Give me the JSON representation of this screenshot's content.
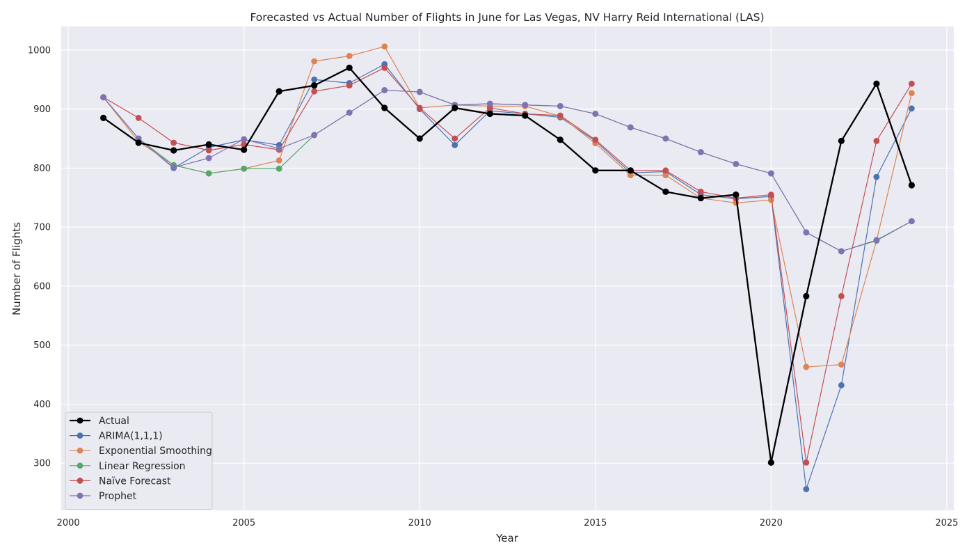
{
  "chart_data": {
    "type": "line",
    "title": "Forecasted vs Actual Number of Flights in June for Las Vegas, NV Harry Reid International (LAS)",
    "xlabel": "Year",
    "ylabel": "Number of Flights",
    "xlim": [
      1999.8,
      2025.2
    ],
    "ylim": [
      220,
      1040
    ],
    "x_ticks": [
      2000,
      2005,
      2010,
      2015,
      2020,
      2025
    ],
    "y_ticks": [
      300,
      400,
      500,
      600,
      700,
      800,
      900,
      1000
    ],
    "grid": true,
    "legend_position": "lower-left",
    "background_color": "#eaeaf2",
    "series": [
      {
        "name": "Actual",
        "color": "#000000",
        "emphasis": true,
        "points": [
          [
            2001,
            885
          ],
          [
            2002,
            843
          ],
          [
            2003,
            830
          ],
          [
            2004,
            840
          ],
          [
            2005,
            831
          ],
          [
            2006,
            930
          ],
          [
            2007,
            940
          ],
          [
            2008,
            970
          ],
          [
            2009,
            902
          ],
          [
            2010,
            850
          ],
          [
            2011,
            902
          ],
          [
            2012,
            892
          ],
          [
            2013,
            889
          ],
          [
            2014,
            848
          ],
          [
            2015,
            796
          ],
          [
            2016,
            796
          ],
          [
            2017,
            760
          ],
          [
            2018,
            749
          ],
          [
            2019,
            755
          ],
          [
            2020,
            301
          ],
          [
            2021,
            583
          ],
          [
            2022,
            846
          ],
          [
            2023,
            943
          ],
          [
            2024,
            771
          ]
        ]
      },
      {
        "name": "ARIMA(1,1,1)",
        "color": "#4c72b0",
        "points": [
          [
            2001,
            920
          ],
          [
            2002,
            850
          ],
          [
            2003,
            800
          ],
          [
            2004,
            835
          ],
          [
            2005,
            848
          ],
          [
            2006,
            839
          ],
          [
            2007,
            950
          ],
          [
            2008,
            944
          ],
          [
            2009,
            976
          ],
          [
            2010,
            900
          ],
          [
            2011,
            839
          ],
          [
            2012,
            897
          ],
          [
            2013,
            892
          ],
          [
            2014,
            886
          ],
          [
            2015,
            846
          ],
          [
            2016,
            792
          ],
          [
            2017,
            794
          ],
          [
            2018,
            755
          ],
          [
            2019,
            748
          ],
          [
            2020,
            752
          ],
          [
            2021,
            256
          ],
          [
            2022,
            432
          ],
          [
            2023,
            785
          ],
          [
            2024,
            901
          ]
        ]
      },
      {
        "name": "Exponential Smoothing",
        "color": "#dd8452",
        "points": [
          [
            2001,
            920
          ],
          [
            2002,
            845
          ],
          [
            2003,
            805
          ],
          [
            2004,
            791
          ],
          [
            2005,
            799
          ],
          [
            2006,
            813
          ],
          [
            2007,
            981
          ],
          [
            2008,
            990
          ],
          [
            2009,
            1006
          ],
          [
            2010,
            902
          ],
          [
            2011,
            907
          ],
          [
            2012,
            905
          ],
          [
            2013,
            905
          ],
          [
            2014,
            888
          ],
          [
            2015,
            842
          ],
          [
            2016,
            788
          ],
          [
            2017,
            788
          ],
          [
            2018,
            749
          ],
          [
            2019,
            741
          ],
          [
            2020,
            746
          ],
          [
            2021,
            463
          ],
          [
            2022,
            467
          ],
          [
            2023,
            677
          ],
          [
            2024,
            927
          ]
        ]
      },
      {
        "name": "Linear Regression",
        "color": "#55a868",
        "points": [
          [
            2001,
            920
          ],
          [
            2002,
            850
          ],
          [
            2003,
            805
          ],
          [
            2004,
            791
          ],
          [
            2005,
            799
          ],
          [
            2006,
            799
          ],
          [
            2007,
            856
          ],
          [
            2008,
            894
          ],
          [
            2009,
            932
          ],
          [
            2010,
            929
          ],
          [
            2011,
            907
          ],
          [
            2012,
            909
          ],
          [
            2013,
            907
          ],
          [
            2014,
            905
          ],
          [
            2015,
            892
          ],
          [
            2016,
            869
          ],
          [
            2017,
            850
          ],
          [
            2018,
            827
          ],
          [
            2019,
            807
          ],
          [
            2020,
            791
          ],
          [
            2021,
            691
          ],
          [
            2022,
            659
          ],
          [
            2023,
            677
          ],
          [
            2024,
            710
          ]
        ]
      },
      {
        "name": "Naïve Forecast",
        "color": "#c44e52",
        "points": [
          [
            2001,
            920
          ],
          [
            2002,
            885
          ],
          [
            2003,
            843
          ],
          [
            2004,
            830
          ],
          [
            2005,
            840
          ],
          [
            2006,
            831
          ],
          [
            2007,
            930
          ],
          [
            2008,
            940
          ],
          [
            2009,
            970
          ],
          [
            2010,
            902
          ],
          [
            2011,
            850
          ],
          [
            2012,
            902
          ],
          [
            2013,
            892
          ],
          [
            2014,
            889
          ],
          [
            2015,
            848
          ],
          [
            2016,
            796
          ],
          [
            2017,
            796
          ],
          [
            2018,
            760
          ],
          [
            2019,
            749
          ],
          [
            2020,
            755
          ],
          [
            2021,
            301
          ],
          [
            2022,
            583
          ],
          [
            2023,
            846
          ],
          [
            2024,
            943
          ]
        ]
      },
      {
        "name": "Prophet",
        "color": "#8172b3",
        "points": [
          [
            2001,
            920
          ],
          [
            2002,
            850
          ],
          [
            2003,
            801
          ],
          [
            2004,
            817
          ],
          [
            2005,
            849
          ],
          [
            2006,
            833
          ],
          [
            2007,
            856
          ],
          [
            2008,
            894
          ],
          [
            2009,
            932
          ],
          [
            2010,
            929
          ],
          [
            2011,
            907
          ],
          [
            2012,
            909
          ],
          [
            2013,
            907
          ],
          [
            2014,
            905
          ],
          [
            2015,
            892
          ],
          [
            2016,
            869
          ],
          [
            2017,
            850
          ],
          [
            2018,
            827
          ],
          [
            2019,
            807
          ],
          [
            2020,
            791
          ],
          [
            2021,
            691
          ],
          [
            2022,
            659
          ],
          [
            2023,
            678
          ],
          [
            2024,
            710
          ]
        ]
      }
    ]
  }
}
